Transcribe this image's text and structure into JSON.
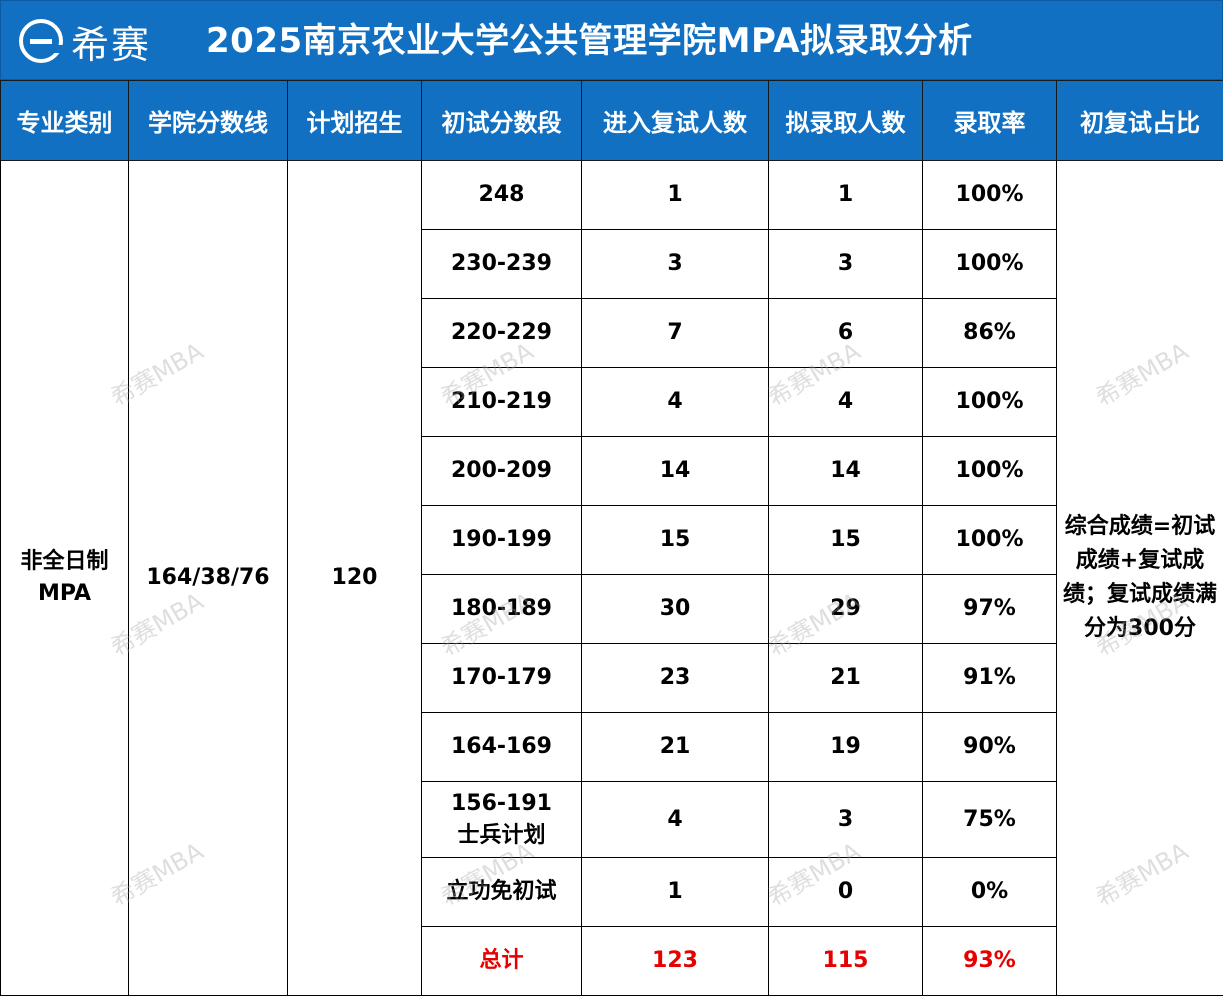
{
  "brand": {
    "logo_text": "希赛"
  },
  "title": "2025南京农业大学公共管理学院MPA拟录取分析",
  "colors": {
    "header_bg": "#1170c1",
    "highlight": "#e60000"
  },
  "headers": [
    "专业类别",
    "学院分数线",
    "计划招生",
    "初试分数段",
    "进入复试人数",
    "拟录取人数",
    "录取率",
    "初复试占比"
  ],
  "program": {
    "category_line1": "非全日制",
    "category_line2": "MPA",
    "cutoff": "164/38/76",
    "plan": "120",
    "note": "综合成绩=初试成绩+复试成绩；复试成绩满分为300分"
  },
  "rows": [
    {
      "range": "248",
      "range_sub": "",
      "retest": "1",
      "admitted": "1",
      "rate": "100%"
    },
    {
      "range": "230-239",
      "range_sub": "",
      "retest": "3",
      "admitted": "3",
      "rate": "100%"
    },
    {
      "range": "220-229",
      "range_sub": "",
      "retest": "7",
      "admitted": "6",
      "rate": "86%"
    },
    {
      "range": "210-219",
      "range_sub": "",
      "retest": "4",
      "admitted": "4",
      "rate": "100%"
    },
    {
      "range": "200-209",
      "range_sub": "",
      "retest": "14",
      "admitted": "14",
      "rate": "100%"
    },
    {
      "range": "190-199",
      "range_sub": "",
      "retest": "15",
      "admitted": "15",
      "rate": "100%"
    },
    {
      "range": "180-189",
      "range_sub": "",
      "retest": "30",
      "admitted": "29",
      "rate": "97%"
    },
    {
      "range": "170-179",
      "range_sub": "",
      "retest": "23",
      "admitted": "21",
      "rate": "91%"
    },
    {
      "range": "164-169",
      "range_sub": "",
      "retest": "21",
      "admitted": "19",
      "rate": "90%"
    },
    {
      "range": "156-191",
      "range_sub": "士兵计划",
      "retest": "4",
      "admitted": "3",
      "rate": "75%"
    },
    {
      "range": "立功免初试",
      "range_sub": "",
      "retest": "1",
      "admitted": "0",
      "rate": "0%"
    }
  ],
  "total": {
    "label": "总计",
    "retest": "123",
    "admitted": "115",
    "rate": "93%"
  },
  "watermark": "希赛MBA"
}
